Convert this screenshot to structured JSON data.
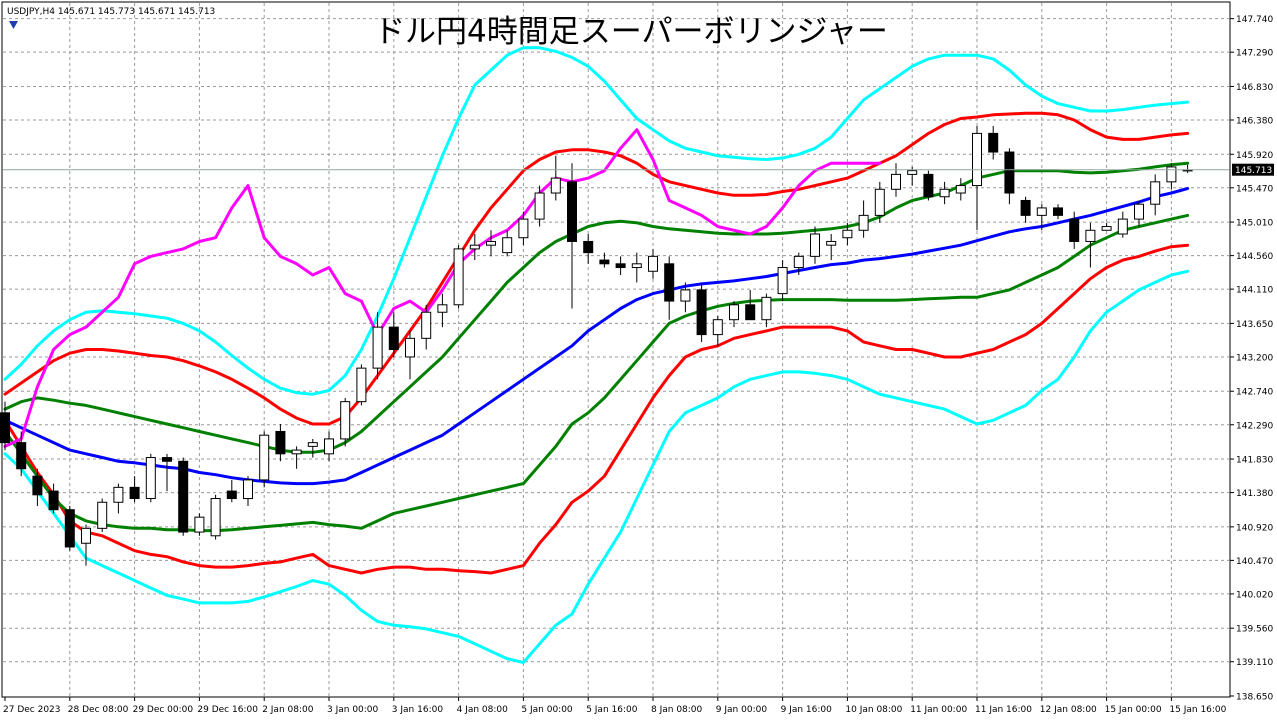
{
  "window": {
    "symbol_info": "USDJPY,H4  145.671 145.773 145.671 145.713",
    "title": "ドル円4時間足スーパーボリンジャー"
  },
  "chart_data": {
    "type": "candlestick",
    "title": "ドル円4時間足スーパーボリンジャー",
    "symbol": "USDJPY",
    "timeframe": "H4",
    "ohlc_readout": [
      145.671,
      145.773,
      145.671,
      145.713
    ],
    "last_price_label": "145.713",
    "last_price": 145.713,
    "ylim": [
      138.65,
      147.95
    ],
    "y_ticks": [
      "147.740",
      "147.290",
      "146.830",
      "146.380",
      "145.920",
      "145.470",
      "145.010",
      "144.560",
      "144.110",
      "143.650",
      "143.200",
      "142.740",
      "142.290",
      "141.830",
      "141.380",
      "140.920",
      "140.470",
      "140.020",
      "139.560",
      "139.110",
      "138.650"
    ],
    "x_ticks": [
      {
        "label": "27 Dec 2023",
        "bar": 0
      },
      {
        "label": "28 Dec 08:00",
        "bar": 4
      },
      {
        "label": "29 Dec 00:00",
        "bar": 8
      },
      {
        "label": "29 Dec 16:00",
        "bar": 12
      },
      {
        "label": "2 Jan 08:00",
        "bar": 16
      },
      {
        "label": "3 Jan 00:00",
        "bar": 20
      },
      {
        "label": "3 Jan 16:00",
        "bar": 24
      },
      {
        "label": "4 Jan 08:00",
        "bar": 28
      },
      {
        "label": "5 Jan 00:00",
        "bar": 32
      },
      {
        "label": "5 Jan 16:00",
        "bar": 36
      },
      {
        "label": "8 Jan 08:00",
        "bar": 40
      },
      {
        "label": "9 Jan 00:00",
        "bar": 44
      },
      {
        "label": "9 Jan 16:00",
        "bar": 48
      },
      {
        "label": "10 Jan 08:00",
        "bar": 52
      },
      {
        "label": "11 Jan 00:00",
        "bar": 56
      },
      {
        "label": "11 Jan 16:00",
        "bar": 60
      },
      {
        "label": "12 Jan 08:00",
        "bar": 64
      },
      {
        "label": "15 Jan 00:00",
        "bar": 68
      },
      {
        "label": "15 Jan 16:00",
        "bar": 72
      }
    ],
    "grid": true,
    "candles": [
      [
        142.45,
        142.6,
        141.95,
        142.05
      ],
      [
        142.05,
        142.2,
        141.6,
        141.7
      ],
      [
        141.6,
        141.7,
        141.2,
        141.35
      ],
      [
        141.4,
        141.5,
        141.1,
        141.15
      ],
      [
        141.15,
        141.2,
        140.6,
        140.65
      ],
      [
        140.7,
        140.95,
        140.4,
        140.9
      ],
      [
        140.9,
        141.3,
        140.85,
        141.25
      ],
      [
        141.25,
        141.5,
        141.1,
        141.45
      ],
      [
        141.45,
        141.6,
        141.25,
        141.3
      ],
      [
        141.3,
        141.9,
        141.25,
        141.85
      ],
      [
        141.85,
        141.9,
        141.4,
        141.8
      ],
      [
        141.8,
        141.85,
        140.8,
        140.85
      ],
      [
        140.85,
        141.1,
        140.8,
        141.05
      ],
      [
        140.8,
        141.35,
        140.75,
        141.3
      ],
      [
        141.4,
        141.55,
        141.25,
        141.3
      ],
      [
        141.3,
        141.6,
        141.2,
        141.55
      ],
      [
        141.55,
        142.2,
        141.45,
        142.15
      ],
      [
        142.2,
        142.3,
        141.8,
        141.9
      ],
      [
        141.9,
        142.0,
        141.7,
        141.95
      ],
      [
        142.0,
        142.1,
        141.85,
        142.05
      ],
      [
        141.9,
        142.2,
        141.8,
        142.1
      ],
      [
        142.1,
        142.65,
        142.0,
        142.6
      ],
      [
        142.6,
        143.1,
        142.55,
        143.05
      ],
      [
        143.05,
        143.8,
        142.9,
        143.6
      ],
      [
        143.6,
        143.8,
        143.2,
        143.3
      ],
      [
        143.2,
        143.55,
        142.9,
        143.45
      ],
      [
        143.45,
        143.9,
        143.3,
        143.8
      ],
      [
        143.8,
        144.05,
        143.6,
        143.9
      ],
      [
        143.9,
        144.7,
        143.85,
        144.65
      ],
      [
        144.65,
        144.85,
        144.5,
        144.7
      ],
      [
        144.7,
        144.9,
        144.55,
        144.75
      ],
      [
        144.6,
        144.9,
        144.55,
        144.8
      ],
      [
        144.8,
        145.15,
        144.7,
        145.05
      ],
      [
        145.05,
        145.5,
        144.95,
        145.4
      ],
      [
        145.4,
        145.9,
        145.3,
        145.6
      ],
      [
        145.55,
        145.8,
        143.85,
        144.75
      ],
      [
        144.75,
        144.85,
        144.45,
        144.6
      ],
      [
        144.5,
        144.6,
        144.4,
        144.45
      ],
      [
        144.45,
        144.55,
        144.3,
        144.4
      ],
      [
        144.4,
        144.6,
        144.2,
        144.45
      ],
      [
        144.35,
        144.65,
        144.25,
        144.55
      ],
      [
        144.45,
        144.55,
        143.7,
        143.95
      ],
      [
        143.95,
        144.2,
        143.8,
        144.1
      ],
      [
        144.1,
        144.2,
        143.4,
        143.5
      ],
      [
        143.5,
        143.75,
        143.35,
        143.7
      ],
      [
        143.7,
        143.95,
        143.6,
        143.9
      ],
      [
        143.9,
        144.1,
        143.75,
        143.7
      ],
      [
        143.7,
        144.05,
        143.6,
        144.0
      ],
      [
        144.05,
        144.5,
        143.95,
        144.4
      ],
      [
        144.4,
        144.6,
        144.3,
        144.55
      ],
      [
        144.55,
        144.95,
        144.45,
        144.85
      ],
      [
        144.7,
        144.85,
        144.5,
        144.75
      ],
      [
        144.8,
        145.0,
        144.7,
        144.9
      ],
      [
        144.9,
        145.3,
        144.8,
        145.1
      ],
      [
        145.1,
        145.55,
        145.0,
        145.45
      ],
      [
        145.45,
        145.8,
        145.35,
        145.65
      ],
      [
        145.65,
        145.75,
        145.5,
        145.7
      ],
      [
        145.65,
        145.7,
        145.3,
        145.35
      ],
      [
        145.35,
        145.55,
        145.25,
        145.45
      ],
      [
        145.4,
        145.6,
        145.3,
        145.5
      ],
      [
        145.5,
        146.3,
        144.9,
        146.2
      ],
      [
        146.2,
        146.3,
        145.85,
        145.95
      ],
      [
        145.95,
        146.0,
        145.25,
        145.4
      ],
      [
        145.3,
        145.35,
        145.0,
        145.1
      ],
      [
        145.1,
        145.25,
        144.9,
        145.2
      ],
      [
        145.2,
        145.25,
        145.05,
        145.1
      ],
      [
        145.05,
        145.15,
        144.65,
        144.75
      ],
      [
        144.75,
        145.0,
        144.4,
        144.9
      ],
      [
        144.9,
        145.0,
        144.9,
        144.95
      ],
      [
        144.85,
        145.15,
        144.8,
        145.05
      ],
      [
        145.05,
        145.3,
        144.95,
        145.25
      ],
      [
        145.25,
        145.65,
        145.1,
        145.55
      ],
      [
        145.55,
        145.8,
        145.45,
        145.75
      ],
      [
        145.7,
        145.78,
        145.67,
        145.71
      ]
    ],
    "series": [
      {
        "color": "#00ffff",
        "values": [
          141.9,
          141.7,
          141.4,
          141.1,
          140.8,
          140.5,
          140.4,
          140.3,
          140.2,
          140.1,
          140.0,
          139.95,
          139.9,
          139.9,
          139.9,
          139.92,
          139.98,
          140.05,
          140.12,
          140.2,
          140.15,
          140.0,
          139.8,
          139.65,
          139.6,
          139.58,
          139.55,
          139.5,
          139.45,
          139.35,
          139.25,
          139.15,
          139.1,
          139.35,
          139.6,
          139.75,
          140.15,
          140.5,
          140.85,
          141.3,
          141.75,
          142.2,
          142.45,
          142.55,
          142.65,
          142.8,
          142.9,
          142.95,
          143.0,
          143.0,
          142.98,
          142.95,
          142.9,
          142.8,
          142.7,
          142.65,
          142.6,
          142.55,
          142.5,
          142.4,
          142.3,
          142.35,
          142.45,
          142.55,
          142.75,
          142.9,
          143.2,
          143.55,
          143.8,
          143.95,
          144.1,
          144.2,
          144.3,
          144.35
        ]
      },
      {
        "color": "#ff0000",
        "values": [
          142.35,
          142.0,
          141.65,
          141.35,
          141.0,
          140.85,
          140.8,
          140.7,
          140.6,
          140.55,
          140.52,
          140.45,
          140.4,
          140.38,
          140.38,
          140.4,
          140.43,
          140.45,
          140.5,
          140.55,
          140.4,
          140.35,
          140.3,
          140.35,
          140.38,
          140.38,
          140.35,
          140.35,
          140.33,
          140.32,
          140.3,
          140.35,
          140.4,
          140.7,
          140.95,
          141.25,
          141.4,
          141.6,
          141.95,
          142.3,
          142.65,
          142.95,
          143.2,
          143.3,
          143.35,
          143.45,
          143.5,
          143.55,
          143.6,
          143.6,
          143.6,
          143.6,
          143.55,
          143.4,
          143.35,
          143.3,
          143.3,
          143.25,
          143.2,
          143.2,
          143.25,
          143.3,
          143.4,
          143.5,
          143.65,
          143.85,
          144.05,
          144.25,
          144.4,
          144.5,
          144.55,
          144.62,
          144.68,
          144.7
        ]
      },
      {
        "color": "#008000",
        "values": [
          142.2,
          141.9,
          141.6,
          141.3,
          141.1,
          141.0,
          140.95,
          140.92,
          140.9,
          140.9,
          140.88,
          140.88,
          140.87,
          140.87,
          140.88,
          140.9,
          140.92,
          140.94,
          140.96,
          140.98,
          140.95,
          140.93,
          140.9,
          141.0,
          141.1,
          141.15,
          141.2,
          141.25,
          141.3,
          141.35,
          141.4,
          141.45,
          141.5,
          141.75,
          142.0,
          142.3,
          142.45,
          142.65,
          142.9,
          143.15,
          143.4,
          143.65,
          143.75,
          143.82,
          143.88,
          143.92,
          143.95,
          143.96,
          143.97,
          143.97,
          143.97,
          143.97,
          143.96,
          143.96,
          143.96,
          143.96,
          143.97,
          143.98,
          143.99,
          144.0,
          144.0,
          144.05,
          144.1,
          144.2,
          144.3,
          144.4,
          144.55,
          144.7,
          144.8,
          144.9,
          144.95,
          145.0,
          145.05,
          145.1
        ]
      },
      {
        "color": "#0000ff",
        "values": [
          142.35,
          142.25,
          142.15,
          142.05,
          141.95,
          141.9,
          141.85,
          141.8,
          141.78,
          141.75,
          141.72,
          141.7,
          141.65,
          141.62,
          141.58,
          141.55,
          141.53,
          141.51,
          141.5,
          141.5,
          141.52,
          141.55,
          141.65,
          141.75,
          141.85,
          141.95,
          142.05,
          142.15,
          142.3,
          142.45,
          142.6,
          142.75,
          142.9,
          143.05,
          143.2,
          143.35,
          143.55,
          143.7,
          143.85,
          143.97,
          144.05,
          144.1,
          144.15,
          144.18,
          144.2,
          144.22,
          144.25,
          144.28,
          144.32,
          144.36,
          144.4,
          144.44,
          144.46,
          144.5,
          144.52,
          144.55,
          144.58,
          144.62,
          144.66,
          144.7,
          144.76,
          144.82,
          144.88,
          144.92,
          144.95,
          145.0,
          145.05,
          145.1,
          145.16,
          145.22,
          145.28,
          145.35,
          145.4,
          145.46
        ]
      },
      {
        "color": "#008000",
        "values": [
          142.5,
          142.6,
          142.65,
          142.62,
          142.58,
          142.55,
          142.5,
          142.45,
          142.4,
          142.35,
          142.3,
          142.25,
          142.2,
          142.15,
          142.1,
          142.05,
          142.0,
          141.95,
          141.92,
          141.92,
          141.95,
          142.05,
          142.2,
          142.4,
          142.6,
          142.8,
          143.0,
          143.2,
          143.45,
          143.7,
          143.95,
          144.2,
          144.4,
          144.6,
          144.75,
          144.85,
          144.95,
          145.0,
          145.02,
          145.0,
          144.95,
          144.92,
          144.9,
          144.88,
          144.86,
          144.85,
          144.85,
          144.85,
          144.86,
          144.88,
          144.9,
          144.92,
          144.95,
          145.0,
          145.08,
          145.2,
          145.3,
          145.35,
          145.4,
          145.5,
          145.6,
          145.65,
          145.7,
          145.7,
          145.7,
          145.7,
          145.68,
          145.67,
          145.68,
          145.7,
          145.72,
          145.75,
          145.78,
          145.8
        ]
      },
      {
        "color": "#ff0000",
        "values": [
          142.7,
          142.85,
          143.0,
          143.15,
          143.25,
          143.3,
          143.3,
          143.28,
          143.25,
          143.22,
          143.2,
          143.15,
          143.08,
          143.0,
          142.9,
          142.78,
          142.65,
          142.5,
          142.38,
          142.3,
          142.3,
          142.4,
          142.65,
          142.95,
          143.25,
          143.55,
          143.85,
          144.2,
          144.55,
          144.9,
          145.2,
          145.45,
          145.7,
          145.85,
          145.95,
          145.98,
          145.98,
          145.95,
          145.9,
          145.8,
          145.65,
          145.55,
          145.5,
          145.45,
          145.4,
          145.37,
          145.37,
          145.38,
          145.42,
          145.45,
          145.5,
          145.55,
          145.6,
          145.7,
          145.8,
          145.9,
          146.05,
          146.2,
          146.32,
          146.4,
          146.42,
          146.45,
          146.46,
          146.47,
          146.47,
          146.45,
          146.38,
          146.25,
          146.15,
          146.12,
          146.12,
          146.15,
          146.18,
          146.2
        ]
      },
      {
        "color": "#00ffff",
        "values": [
          142.9,
          143.1,
          143.35,
          143.55,
          143.7,
          143.8,
          143.82,
          143.8,
          143.78,
          143.75,
          143.72,
          143.65,
          143.55,
          143.4,
          143.22,
          143.05,
          142.9,
          142.78,
          142.72,
          142.7,
          142.75,
          142.95,
          143.3,
          143.75,
          144.25,
          144.8,
          145.35,
          145.9,
          146.4,
          146.85,
          147.05,
          147.25,
          147.35,
          147.35,
          147.3,
          147.22,
          147.1,
          146.9,
          146.65,
          146.4,
          146.25,
          146.1,
          146.0,
          145.95,
          145.9,
          145.88,
          145.86,
          145.85,
          145.87,
          145.92,
          146.0,
          146.15,
          146.4,
          146.65,
          146.8,
          146.95,
          147.1,
          147.2,
          147.25,
          147.25,
          147.25,
          147.2,
          147.05,
          146.85,
          146.7,
          146.6,
          146.55,
          146.5,
          146.5,
          146.52,
          146.55,
          146.58,
          146.6,
          146.62
        ]
      },
      {
        "color": "#ff00ff",
        "values": [
          142.0,
          142.1,
          142.8,
          143.3,
          143.5,
          143.6,
          143.8,
          144.0,
          144.45,
          144.55,
          144.6,
          144.65,
          144.75,
          144.8,
          145.2,
          145.5,
          144.8,
          144.55,
          144.45,
          144.3,
          144.4,
          144.05,
          143.95,
          143.5,
          143.85,
          143.95,
          143.8,
          144.1,
          144.45,
          144.65,
          144.8,
          144.9,
          145.1,
          145.4,
          145.6,
          145.55,
          145.6,
          145.7,
          146.0,
          146.25,
          145.85,
          145.3,
          145.2,
          145.1,
          144.95,
          144.9,
          144.85,
          144.95,
          145.2,
          145.5,
          145.7,
          145.8,
          145.8,
          145.8,
          145.8
        ]
      }
    ]
  }
}
